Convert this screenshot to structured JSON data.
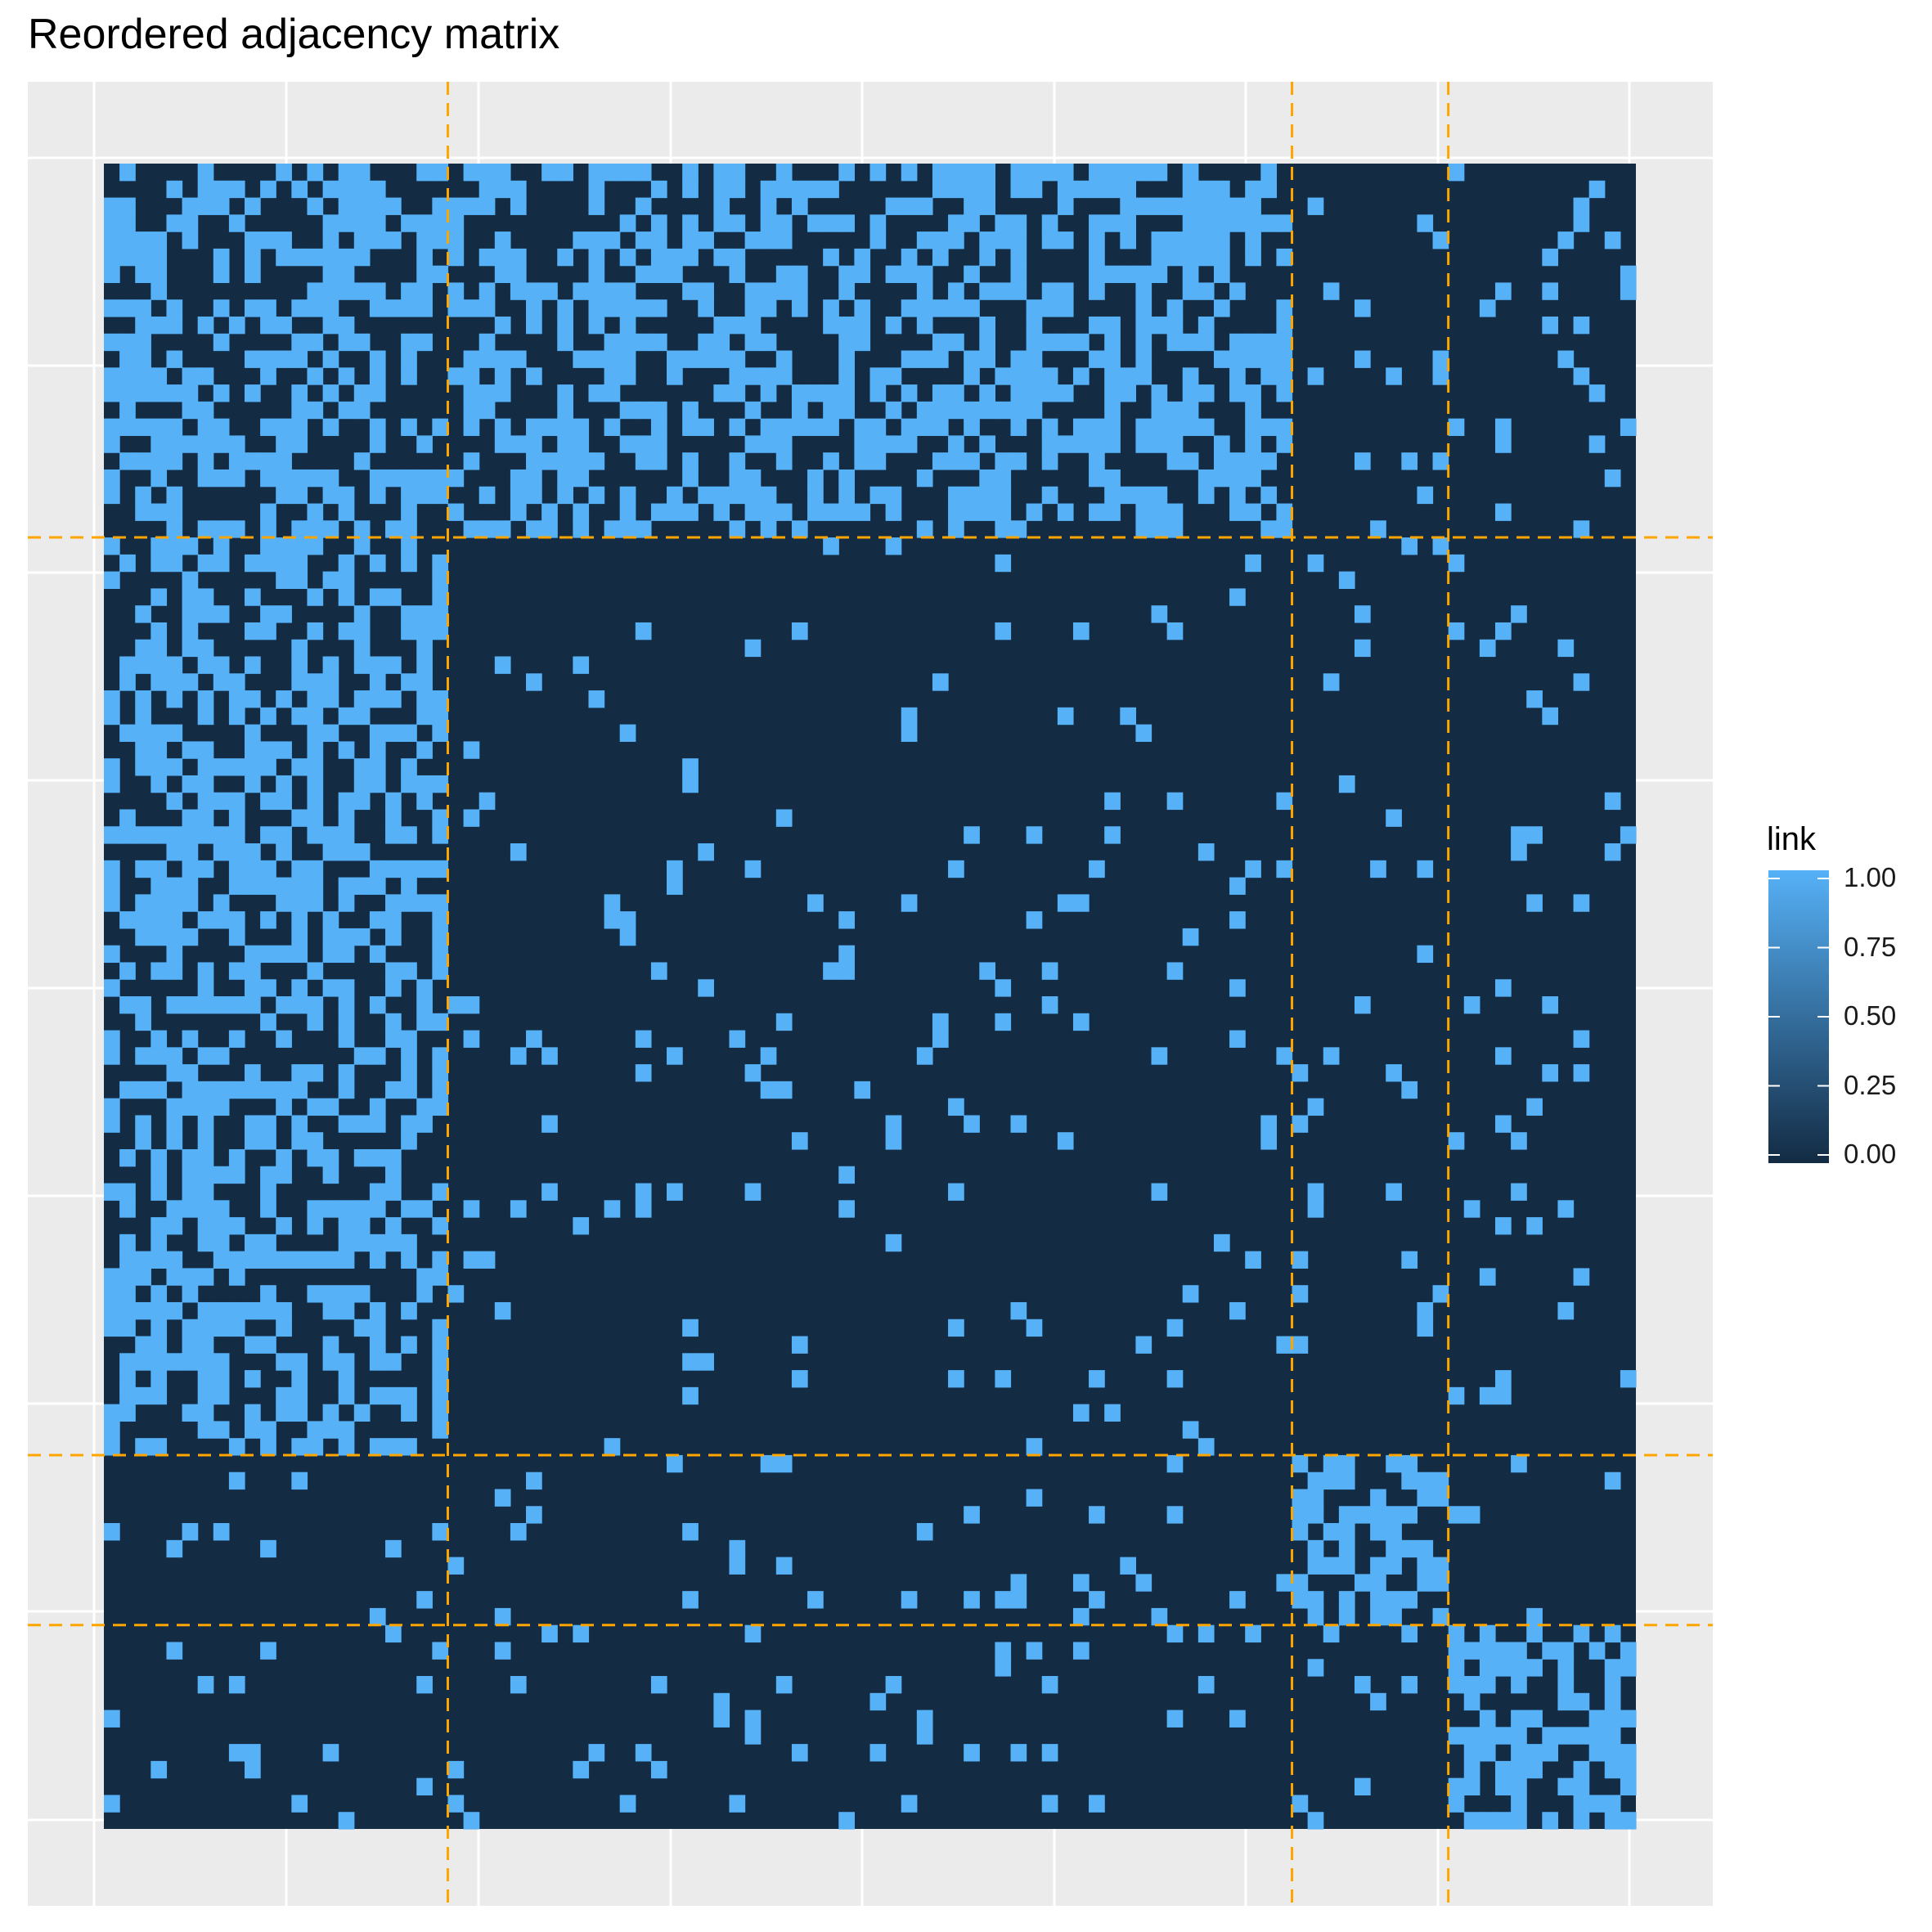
{
  "chart_data": {
    "type": "heatmap",
    "title": "Reordered adjacency matrix",
    "xlabel": "",
    "ylabel": "",
    "n_nodes": 98,
    "group_boundaries_after_index": [
      22,
      76,
      86
    ],
    "x_boundary_after_index": [
      22,
      76,
      86
    ],
    "fill_legend": {
      "title": "link",
      "ticks": [
        1.0,
        0.75,
        0.5,
        0.25,
        0.0
      ],
      "tick_labels": [
        "1.00",
        "0.75",
        "0.50",
        "0.25",
        "0.00"
      ],
      "low_color": "#132B43",
      "high_color": "#56B1F7"
    },
    "blocks": [
      {
        "rows": "1-22",
        "cols": "1-76",
        "link_density": 0.5
      },
      {
        "rows": "1-76",
        "cols": "1-22",
        "link_density": 0.5
      },
      {
        "rows": "23-76",
        "cols": "23-76",
        "link_density": 0.05
      },
      {
        "rows": "77-86",
        "cols": "77-86",
        "link_density": 0.55
      },
      {
        "rows": "87-98",
        "cols": "87-98",
        "link_density": 0.55
      },
      {
        "rows": "other",
        "cols": "other",
        "link_density": 0.05
      }
    ],
    "grid": true,
    "legend_position": "right"
  },
  "colors": {
    "panel_background": "#EBEBEB",
    "grid_line": "#FFFFFF",
    "link_high": "#56B1F7",
    "link_low": "#132B43",
    "boundary_line": "#FFA500"
  }
}
